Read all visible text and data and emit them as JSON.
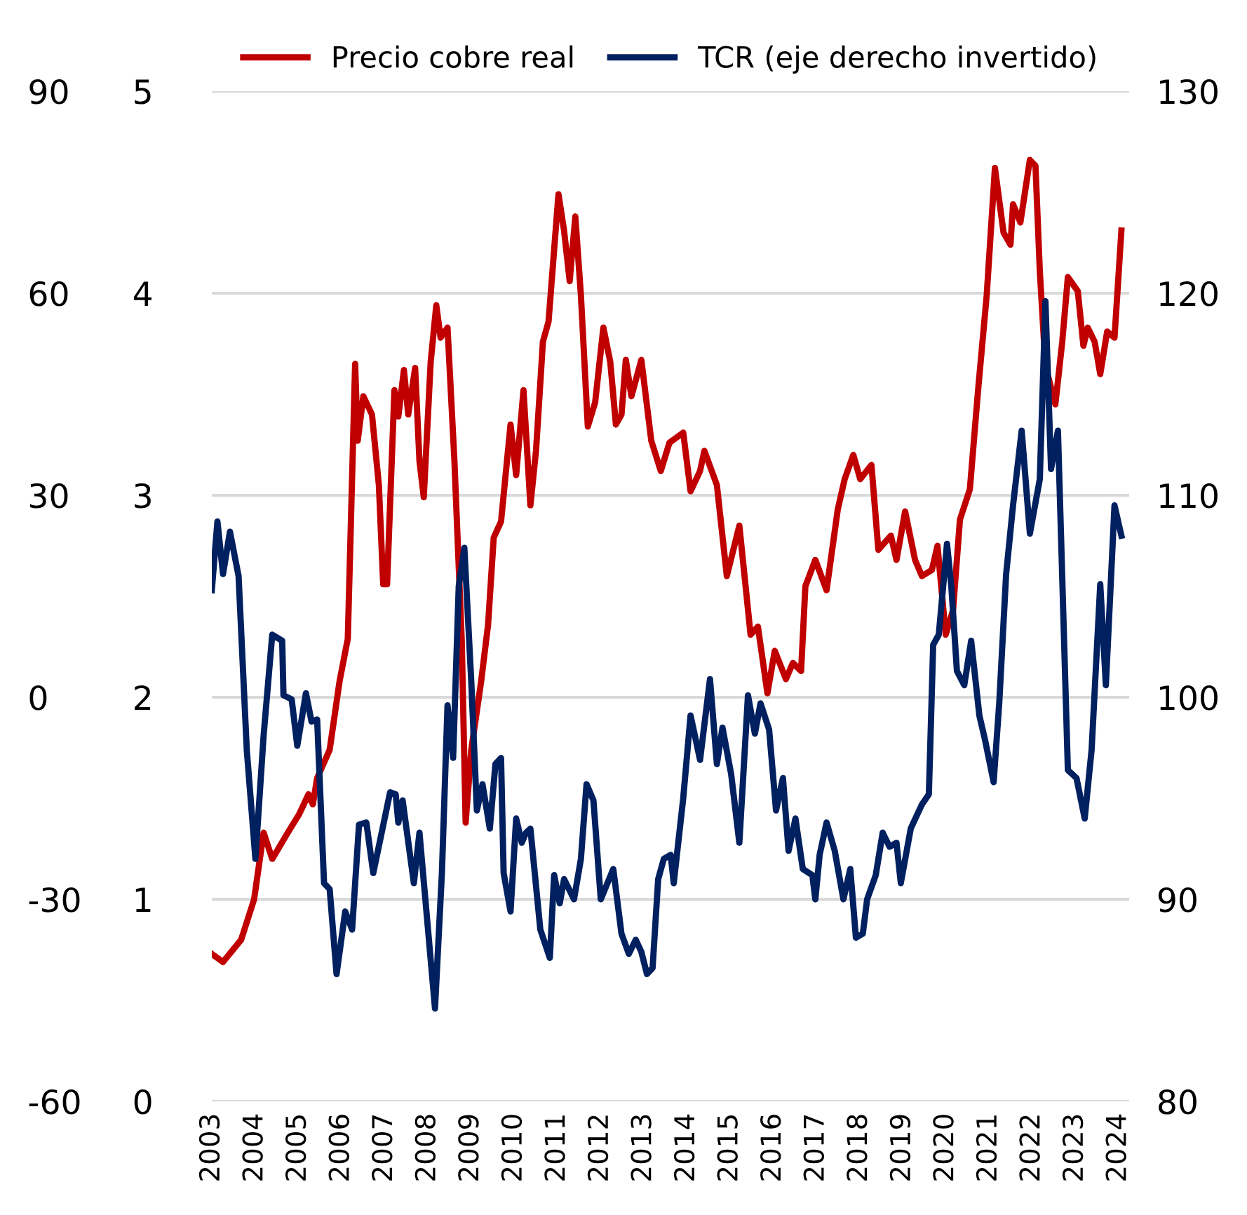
{
  "chart_data": {
    "type": "line",
    "series": [
      {
        "name": "Precio cobre real",
        "color": "#c00000",
        "x": [
          2003.0,
          2003.26,
          2003.68,
          2003.98,
          2004.2,
          2004.4,
          2004.76,
          2005.02,
          2005.24,
          2005.34,
          2005.44,
          2005.73,
          2005.96,
          2006.15,
          2006.32,
          2006.38,
          2006.51,
          2006.71,
          2006.87,
          2006.97,
          2007.06,
          2007.23,
          2007.32,
          2007.45,
          2007.55,
          2007.71,
          2007.81,
          2007.91,
          2008.07,
          2008.2,
          2008.3,
          2008.46,
          2008.62,
          2008.79,
          2008.88,
          2009.01,
          2009.24,
          2009.4,
          2009.53,
          2009.7,
          2009.92,
          2010.05,
          2010.22,
          2010.38,
          2010.51,
          2010.67,
          2010.8,
          2011.03,
          2011.16,
          2011.29,
          2011.42,
          2011.55,
          2011.71,
          2011.88,
          2012.07,
          2012.23,
          2012.36,
          2012.49,
          2012.59,
          2012.72,
          2012.95,
          2013.18,
          2013.4,
          2013.6,
          2013.92,
          2014.09,
          2014.31,
          2014.41,
          2014.7,
          2014.93,
          2015.22,
          2015.48,
          2015.65,
          2015.87,
          2016.04,
          2016.3,
          2016.46,
          2016.65,
          2016.75,
          2016.98,
          2017.24,
          2017.5,
          2017.66,
          2017.86,
          2018.02,
          2018.28,
          2018.44,
          2018.73,
          2018.86,
          2019.06,
          2019.29,
          2019.45,
          2019.68,
          2019.81,
          2020.0,
          2020.17,
          2020.33,
          2020.56,
          2020.75,
          2020.95,
          2021.14,
          2021.34,
          2021.5,
          2021.56,
          2021.73,
          2021.95,
          2022.08,
          2022.18,
          2022.31,
          2022.54,
          2022.7,
          2022.83,
          2023.06,
          2023.19,
          2023.29,
          2023.45,
          2023.58,
          2023.74,
          2023.91,
          2024.07
        ],
        "values": [
          0.73,
          0.69,
          0.8,
          1.0,
          1.33,
          1.2,
          1.33,
          1.42,
          1.52,
          1.47,
          1.6,
          1.74,
          2.08,
          2.29,
          3.65,
          3.27,
          3.49,
          3.4,
          3.05,
          2.56,
          2.56,
          3.52,
          3.39,
          3.62,
          3.4,
          3.63,
          3.17,
          2.99,
          3.66,
          3.94,
          3.78,
          3.83,
          3.17,
          2.28,
          1.38,
          1.74,
          2.08,
          2.36,
          2.79,
          2.87,
          3.35,
          3.1,
          3.52,
          2.95,
          3.22,
          3.76,
          3.86,
          4.49,
          4.31,
          4.06,
          4.38,
          3.99,
          3.34,
          3.46,
          3.83,
          3.66,
          3.35,
          3.4,
          3.67,
          3.49,
          3.67,
          3.27,
          3.12,
          3.26,
          3.31,
          3.02,
          3.12,
          3.22,
          3.05,
          2.6,
          2.85,
          2.31,
          2.35,
          2.02,
          2.23,
          2.09,
          2.17,
          2.13,
          2.55,
          2.68,
          2.53,
          2.93,
          3.08,
          3.2,
          3.08,
          3.15,
          2.73,
          2.8,
          2.68,
          2.92,
          2.68,
          2.6,
          2.63,
          2.75,
          2.31,
          2.43,
          2.88,
          3.03,
          3.52,
          3.99,
          4.62,
          4.3,
          4.24,
          4.44,
          4.35,
          4.66,
          4.63,
          4.11,
          3.64,
          3.45,
          3.76,
          4.08,
          4.01,
          3.74,
          3.83,
          3.76,
          3.6,
          3.81,
          3.78,
          4.31
        ]
      },
      {
        "name": "TCR (eje derecho invertido)",
        "color": "#002060",
        "axis": "y2",
        "x": [
          2003.0,
          2003.13,
          2003.26,
          2003.42,
          2003.62,
          2003.81,
          2004.01,
          2004.2,
          2004.4,
          2004.63,
          2004.66,
          2004.85,
          2004.98,
          2005.18,
          2005.31,
          2005.44,
          2005.6,
          2005.73,
          2005.89,
          2006.09,
          2006.25,
          2006.41,
          2006.58,
          2006.74,
          2007.13,
          2007.26,
          2007.32,
          2007.42,
          2007.68,
          2007.81,
          2008.17,
          2008.33,
          2008.46,
          2008.59,
          2008.72,
          2008.85,
          2009.01,
          2009.14,
          2009.27,
          2009.44,
          2009.57,
          2009.7,
          2009.76,
          2009.92,
          2010.05,
          2010.18,
          2010.28,
          2010.38,
          2010.61,
          2010.83,
          2010.93,
          2011.06,
          2011.16,
          2011.39,
          2011.55,
          2011.68,
          2011.84,
          2012.01,
          2012.3,
          2012.49,
          2012.66,
          2012.82,
          2012.95,
          2013.08,
          2013.21,
          2013.34,
          2013.47,
          2013.63,
          2013.7,
          2013.92,
          2014.09,
          2014.31,
          2014.54,
          2014.7,
          2014.83,
          2015.03,
          2015.22,
          2015.42,
          2015.58,
          2015.71,
          2015.91,
          2016.07,
          2016.23,
          2016.36,
          2016.52,
          2016.69,
          2016.91,
          2016.98,
          2017.08,
          2017.24,
          2017.43,
          2017.63,
          2017.79,
          2017.92,
          2018.08,
          2018.18,
          2018.38,
          2018.54,
          2018.7,
          2018.86,
          2018.96,
          2019.19,
          2019.45,
          2019.61,
          2019.71,
          2019.84,
          2020.03,
          2020.13,
          2020.26,
          2020.43,
          2020.59,
          2020.78,
          2020.91,
          2021.11,
          2021.24,
          2021.4,
          2021.56,
          2021.76,
          2021.95,
          2022.18,
          2022.31,
          2022.44,
          2022.6,
          2022.83,
          2023.03,
          2023.22,
          2023.38,
          2023.58,
          2023.71,
          2023.91,
          2024.07
        ],
        "values": [
          105.3,
          108.7,
          106.1,
          108.2,
          106.0,
          97.4,
          92.0,
          98.1,
          103.1,
          102.8,
          100.1,
          99.9,
          97.6,
          100.2,
          98.8,
          98.9,
          90.8,
          90.5,
          86.3,
          89.4,
          88.5,
          93.7,
          93.8,
          91.3,
          95.3,
          95.2,
          93.8,
          94.9,
          90.8,
          93.3,
          84.6,
          91.3,
          99.6,
          97.0,
          105.5,
          107.4,
          100.8,
          94.4,
          95.7,
          93.5,
          96.7,
          97.0,
          91.3,
          89.4,
          94.0,
          92.8,
          93.3,
          93.5,
          88.5,
          87.1,
          91.2,
          89.8,
          91.0,
          90.0,
          92.0,
          95.7,
          94.9,
          90.0,
          91.5,
          88.3,
          87.3,
          88.0,
          87.4,
          86.3,
          86.6,
          91.0,
          92.0,
          92.2,
          90.8,
          95.0,
          99.1,
          96.9,
          100.9,
          96.7,
          98.5,
          96.2,
          92.8,
          100.1,
          98.2,
          99.7,
          98.4,
          94.4,
          96.0,
          92.4,
          94.0,
          91.5,
          91.2,
          90.0,
          92.2,
          93.8,
          92.4,
          90.0,
          91.5,
          88.1,
          88.3,
          90.0,
          91.2,
          93.3,
          92.6,
          92.8,
          90.8,
          93.5,
          94.7,
          95.2,
          102.6,
          103.1,
          107.6,
          105.5,
          101.3,
          100.6,
          102.8,
          99.1,
          97.9,
          95.8,
          99.7,
          106.1,
          109.5,
          113.2,
          108.1,
          110.8,
          119.6,
          111.3,
          113.2,
          96.4,
          96.0,
          94.0,
          97.4,
          105.6,
          100.6,
          109.5,
          108.0
        ]
      }
    ],
    "xlim": [
      2003,
      2024.25
    ],
    "xticks": [
      2003,
      2004,
      2005,
      2006,
      2007,
      2008,
      2009,
      2010,
      2011,
      2012,
      2013,
      2014,
      2015,
      2016,
      2017,
      2018,
      2019,
      2020,
      2021,
      2022,
      2023,
      2024
    ],
    "ylim": [
      0,
      5
    ],
    "yticks": [
      0,
      1,
      2,
      3,
      4,
      5
    ],
    "y2lim": [
      80,
      130
    ],
    "y2ticks": [
      80,
      90,
      100,
      110,
      120,
      130
    ],
    "y3lim": [
      -60,
      90
    ],
    "y3ticks": [
      -60,
      -30,
      0,
      30,
      60,
      90
    ],
    "grid": "y",
    "legend": "top",
    "line_style": "solid",
    "marker": "none"
  }
}
